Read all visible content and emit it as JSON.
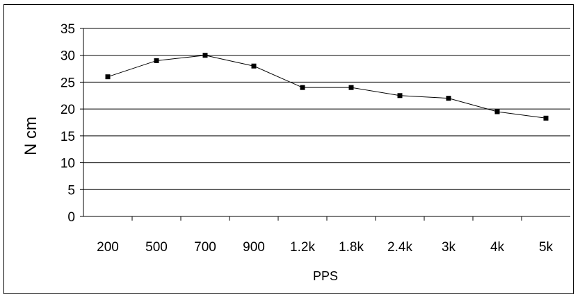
{
  "chart_data": {
    "type": "line",
    "categories": [
      "200",
      "500",
      "700",
      "900",
      "1.2k",
      "1.8k",
      "2.4k",
      "3k",
      "4k",
      "5k"
    ],
    "series": [
      {
        "values": [
          26,
          29,
          30,
          28,
          24,
          24,
          22.5,
          22,
          19.5,
          18.3
        ]
      }
    ],
    "xlabel": "PPS",
    "ylabel": "N cm",
    "ylim": [
      0,
      35
    ],
    "yticks": [
      0,
      5,
      10,
      15,
      20,
      25,
      30,
      35
    ],
    "grid": true,
    "legend": "none",
    "line_color": "#000000",
    "marker": "square"
  }
}
